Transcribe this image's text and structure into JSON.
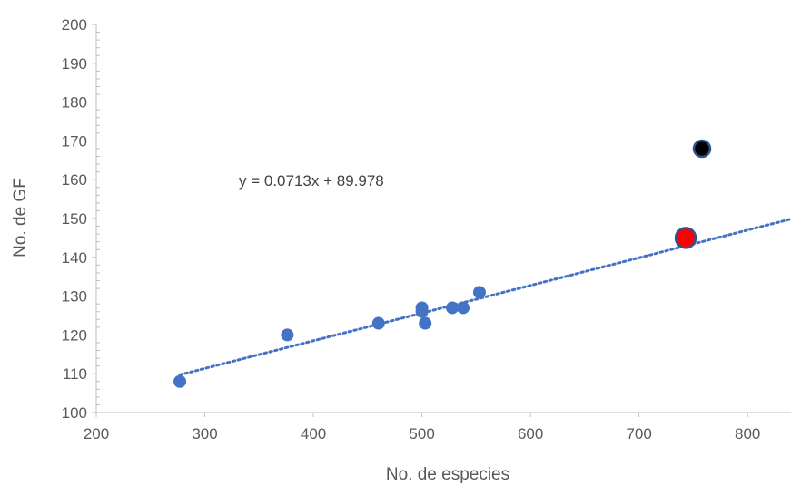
{
  "chart_data": {
    "type": "scatter",
    "xlabel": "No. de especies",
    "ylabel": "No. de GF",
    "xlim": [
      200,
      840
    ],
    "ylim": [
      100,
      200
    ],
    "x_ticks": [
      200,
      300,
      400,
      500,
      600,
      700,
      800
    ],
    "y_ticks": [
      100,
      110,
      120,
      130,
      140,
      150,
      160,
      170,
      180,
      190,
      200
    ],
    "grid": false,
    "series": [
      {
        "color": "#4472c4",
        "points": [
          {
            "x": 277,
            "y": 108
          },
          {
            "x": 376,
            "y": 120
          },
          {
            "x": 460,
            "y": 123
          },
          {
            "x": 500,
            "y": 127
          },
          {
            "x": 500,
            "y": 126
          },
          {
            "x": 503,
            "y": 123
          },
          {
            "x": 528,
            "y": 127
          },
          {
            "x": 538,
            "y": 127
          },
          {
            "x": 553,
            "y": 131
          }
        ]
      },
      {
        "color": "#ff0000",
        "points": [
          {
            "x": 743,
            "y": 145
          }
        ]
      },
      {
        "color": "#000000",
        "points": [
          {
            "x": 758,
            "y": 168
          }
        ]
      }
    ],
    "trendline": {
      "slope": 0.0713,
      "intercept": 89.978,
      "x_range": [
        277,
        840
      ],
      "color": "#4472c4",
      "style": "dotted",
      "equation_label": "y = 0.0713x + 89.978"
    }
  }
}
